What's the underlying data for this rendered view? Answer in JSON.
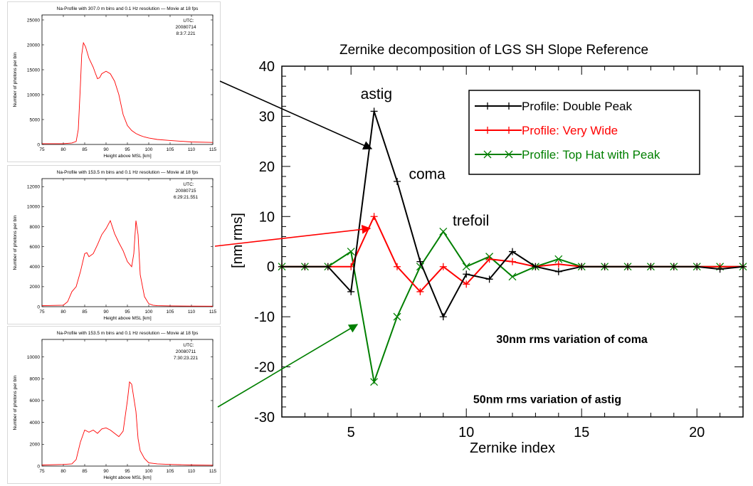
{
  "colors": {
    "profile_red": "#ff0000",
    "black": "#000000",
    "green": "#007f00"
  },
  "small_charts": [
    {
      "title": "Na-Profile with 307.0 m bins and 0.1 Hz resolution — Movie at 18 fps",
      "utc_label": "UTC:",
      "utc_date": "20080714",
      "utc_time": "8:3:7.221",
      "xlabel": "Height above MSL [km]",
      "ylabel": "Number of photons per bin",
      "xticks": [
        "75",
        "80",
        "85",
        "90",
        "95",
        "100",
        "105",
        "110",
        "115"
      ],
      "yticks": [
        "0",
        "5000",
        "10000",
        "15000",
        "20000",
        "25000"
      ],
      "xlim": [
        75,
        115
      ],
      "ylim": [
        0,
        26000
      ],
      "line_color": "#ff0000",
      "x": [
        75,
        80,
        82,
        83,
        83.5,
        84,
        84.3,
        84.7,
        85.2,
        86,
        87,
        87.5,
        88,
        88.5,
        89,
        90,
        91,
        92,
        93,
        94,
        95,
        96,
        97,
        98,
        99,
        100,
        102,
        105,
        110,
        115
      ],
      "y": [
        150,
        150,
        300,
        600,
        3000,
        12000,
        18000,
        20400,
        19600,
        17300,
        15500,
        14300,
        13200,
        13400,
        14200,
        14700,
        14200,
        12700,
        10000,
        6000,
        3800,
        2800,
        2200,
        1800,
        1500,
        1300,
        1000,
        800,
        500,
        400
      ]
    },
    {
      "title": "Na-Profile with 153.5 m bins and 0.1 Hz resolution — Movie at 18 fps",
      "utc_label": "UTC:",
      "utc_date": "20080715",
      "utc_time": "6:29:21.551",
      "xlabel": "Height above MSL [km]",
      "ylabel": "Number of photons per bin",
      "xticks": [
        "75",
        "80",
        "85",
        "90",
        "95",
        "100",
        "105",
        "110",
        "115"
      ],
      "yticks": [
        "0",
        "2000",
        "4000",
        "6000",
        "8000",
        "10000",
        "12000"
      ],
      "xlim": [
        75,
        115
      ],
      "ylim": [
        0,
        12800
      ],
      "line_color": "#ff0000",
      "x": [
        75,
        80,
        81,
        82,
        83,
        84,
        85,
        85.5,
        86,
        87,
        88,
        89,
        90,
        91,
        92,
        93,
        94,
        95,
        96,
        96.5,
        97,
        97.5,
        98,
        99,
        100,
        101,
        102,
        105,
        110,
        115
      ],
      "y": [
        100,
        150,
        500,
        1500,
        2000,
        3500,
        5300,
        5400,
        5000,
        5300,
        6200,
        7200,
        7800,
        8600,
        7300,
        6400,
        5600,
        4500,
        4000,
        5300,
        8600,
        7200,
        3200,
        1000,
        300,
        150,
        100,
        80,
        60,
        50
      ]
    },
    {
      "title": "Na-Profile with 153.5 m bins and 0.1 Hz resolution — Movie at 18 fps",
      "utc_label": "UTC:",
      "utc_date": "20080711",
      "utc_time": "7:30:23.221",
      "xlabel": "Height above MSL [km]",
      "ylabel": "Number of photons per bin",
      "xticks": [
        "75",
        "80",
        "85",
        "90",
        "95",
        "100",
        "105",
        "110",
        "115"
      ],
      "yticks": [
        "0",
        "2000",
        "4000",
        "6000",
        "8000",
        "10000"
      ],
      "xlim": [
        75,
        115
      ],
      "ylim": [
        0,
        11600
      ],
      "line_color": "#ff0000",
      "x": [
        75,
        80,
        82,
        83,
        84,
        85,
        86,
        87,
        88,
        89,
        90,
        91,
        92,
        93,
        94,
        95,
        95.5,
        96,
        97,
        97.5,
        98,
        99,
        100,
        102,
        105,
        110,
        115
      ],
      "y": [
        100,
        150,
        200,
        600,
        2200,
        3300,
        3100,
        3300,
        3000,
        3400,
        3500,
        3300,
        3000,
        2700,
        3200,
        6000,
        7700,
        7500,
        5000,
        2500,
        1400,
        700,
        300,
        200,
        150,
        100,
        80
      ]
    }
  ],
  "chart_data": {
    "type": "line",
    "title": "Zernike decomposition of LGS SH Slope Reference",
    "xlabel": "Zernike index",
    "ylabel": "[nm rms]",
    "xlim": [
      2,
      22
    ],
    "ylim": [
      -30,
      40
    ],
    "xticks": [
      5,
      10,
      15,
      20
    ],
    "yticks": [
      -30,
      -20,
      -10,
      0,
      10,
      20,
      30,
      40
    ],
    "x": [
      2,
      3,
      4,
      5,
      6,
      7,
      8,
      9,
      10,
      11,
      12,
      13,
      14,
      15,
      16,
      17,
      18,
      19,
      20,
      21,
      22
    ],
    "series": [
      {
        "name": "Profile: Double Peak",
        "color": "#000000",
        "marker": "+",
        "values": [
          0,
          0,
          0,
          -5,
          31,
          17,
          1,
          -10,
          -1.5,
          -2.5,
          3,
          0,
          -1,
          0,
          0,
          0,
          0,
          0,
          0,
          -0.5,
          0
        ]
      },
      {
        "name": "Profile: Very Wide",
        "color": "#ff0000",
        "marker": "+",
        "values": [
          0,
          0,
          0,
          0,
          10,
          0,
          -5,
          0,
          -3.5,
          1.5,
          1,
          0,
          0.5,
          0,
          0,
          0,
          0,
          0,
          0,
          0,
          0
        ]
      },
      {
        "name": "Profile: Top Hat with Peak",
        "color": "#007f00",
        "marker": "x",
        "values": [
          0,
          0,
          0,
          3,
          -23,
          -10,
          0,
          7,
          0,
          2,
          -2,
          0,
          1.5,
          0,
          0,
          0,
          0,
          0,
          0,
          0,
          0
        ]
      }
    ],
    "annotations": [
      {
        "text": "astig",
        "x": 6.1,
        "y": 33.5,
        "weight": "normal"
      },
      {
        "text": "coma",
        "x": 8.3,
        "y": 17.5,
        "weight": "normal"
      },
      {
        "text": "trefoil",
        "x": 10.2,
        "y": 8.2,
        "weight": "normal"
      },
      {
        "text": "30nm rms variation of coma",
        "x": 11.3,
        "y": -15.2,
        "weight": "bold"
      },
      {
        "text": "50nm rms variation of astig",
        "x": 10.3,
        "y": -27.2,
        "weight": "bold"
      }
    ],
    "legend_position": "top-right",
    "grid": false
  }
}
